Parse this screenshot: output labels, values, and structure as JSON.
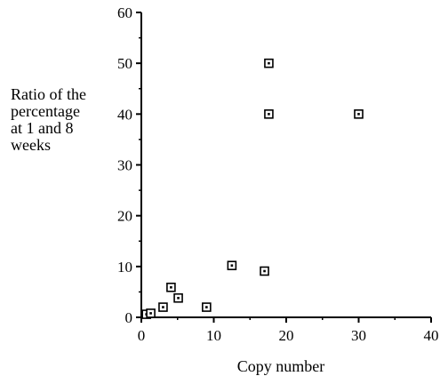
{
  "chart_data": {
    "type": "scatter",
    "title": "",
    "xlabel": "Copy number",
    "ylabel_lines": [
      "Ratio of the",
      "percentage",
      "at 1 and 8",
      "weeks"
    ],
    "xlim": [
      0,
      40
    ],
    "ylim": [
      0,
      60
    ],
    "xticks": [
      0,
      10,
      20,
      30,
      40
    ],
    "yticks": [
      0,
      10,
      20,
      30,
      40,
      50,
      60
    ],
    "grid": false,
    "marker": "open-square",
    "points": [
      {
        "x": 0.7,
        "y": 0.6
      },
      {
        "x": 1.3,
        "y": 0.8
      },
      {
        "x": 3.0,
        "y": 2.0
      },
      {
        "x": 4.1,
        "y": 5.9
      },
      {
        "x": 5.1,
        "y": 3.8
      },
      {
        "x": 9.0,
        "y": 2.0
      },
      {
        "x": 12.5,
        "y": 10.2
      },
      {
        "x": 17.0,
        "y": 9.1
      },
      {
        "x": 17.6,
        "y": 50.0
      },
      {
        "x": 17.6,
        "y": 40.0
      },
      {
        "x": 30.0,
        "y": 40.0
      }
    ]
  }
}
